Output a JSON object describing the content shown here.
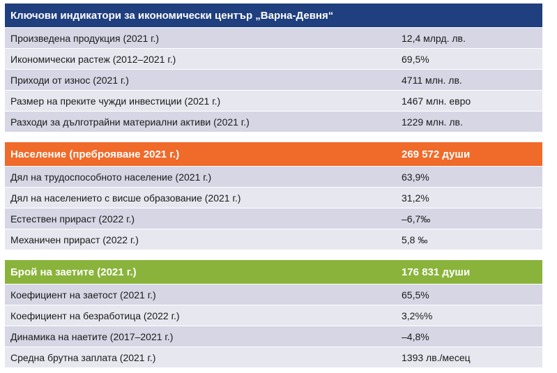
{
  "section1": {
    "title": "Ключови индикатори за икономически център „Варна-Девня“",
    "rows": [
      {
        "label": "Произведена продукция (2021 г.)",
        "value": "12,4 млрд. лв."
      },
      {
        "label": "Икономически растеж (2012–2021 г.)",
        "value": "69,5%"
      },
      {
        "label": "Приходи от износ (2021 г.)",
        "value": "4711 млн. лв."
      },
      {
        "label": "Размер на преките чужди инвестиции (2021 г.)",
        "value": "1467 млн. евро"
      },
      {
        "label": "Разходи за дълготрайни материални активи (2021 г.)",
        "value": "1229 млн. лв."
      }
    ]
  },
  "section2": {
    "title": "Население (преброяване 2021 г.)",
    "value": "269 572 души",
    "rows": [
      {
        "label": "Дял на трудоспособното население (2021 г.)",
        "value": "63,9%"
      },
      {
        "label": "Дял на населението с висше образование (2021 г.)",
        "value": "31,2%"
      },
      {
        "label": "Естествен прираст (2022 г.)",
        "value": "–6,7‰"
      },
      {
        "label": "Механичен прираст (2022 г.)",
        "value": "5,8 ‰"
      }
    ]
  },
  "section3": {
    "title": "Брой на заетите (2021 г.)",
    "value": "176 831 души",
    "rows": [
      {
        "label": "Коефициент на заетост (2021 г.)",
        "value": "65,5%"
      },
      {
        "label": "Коефициент на безработица (2022 г.)",
        "value": "3,2%%"
      },
      {
        "label": "Динамика на наетите (2017–2021 г.)",
        "value": "–4,8%"
      },
      {
        "label": "Средна брутна заплата (2021 г.)",
        "value": "1393 лв./месец"
      }
    ]
  },
  "colors": {
    "blue": "#1f3f7e",
    "orange": "#f06a2a",
    "green": "#8ab33b",
    "row_light": "#e7e7f0",
    "row_dark": "#d6d6e5"
  }
}
